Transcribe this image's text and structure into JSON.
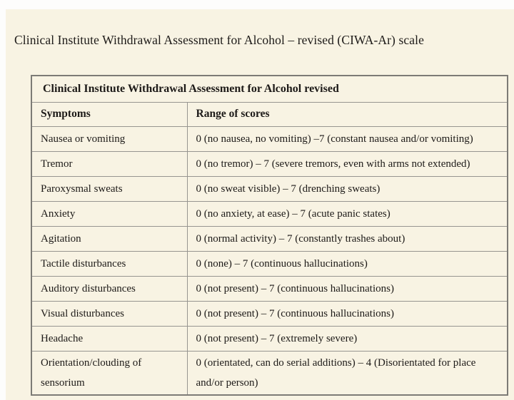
{
  "page": {
    "title": "Clinical Institute Withdrawal Assessment for Alcohol – revised (CIWA-Ar) scale"
  },
  "colors": {
    "page_background": "#f8f3e3",
    "table_border_outer": "#7d7b76",
    "table_border_inner": "#979590",
    "text": "#1d1a18"
  },
  "table": {
    "header": "Clinical Institute Withdrawal Assessment for Alcohol revised",
    "columns": [
      "Symptoms",
      "Range of scores"
    ],
    "rows": [
      {
        "symptom": "Nausea or vomiting",
        "range": "0 (no nausea, no vomiting) –7 (constant nausea and/or vomiting)"
      },
      {
        "symptom": "Tremor",
        "range": "0 (no tremor) – 7 (severe tremors, even with arms not extended)"
      },
      {
        "symptom": "Paroxysmal sweats",
        "range": "0 (no sweat visible) – 7 (drenching sweats)"
      },
      {
        "symptom": "Anxiety",
        "range": "0 (no anxiety, at ease) – 7 (acute panic states)"
      },
      {
        "symptom": "Agitation",
        "range": "0 (normal activity) – 7 (constantly trashes about)"
      },
      {
        "symptom": "Tactile disturbances",
        "range": "0 (none) – 7 (continuous hallucinations)"
      },
      {
        "symptom": "Auditory disturbances",
        "range": "0 (not present) – 7 (continuous hallucinations)"
      },
      {
        "symptom": "Visual disturbances",
        "range": "0 (not present) – 7 (continuous hallucinations)"
      },
      {
        "symptom": "Headache",
        "range": "0 (not present) – 7 (extremely severe)"
      },
      {
        "symptom": "Orientation/clouding of sensorium",
        "range": "0 (orientated, can do serial additions) – 4 (Disorientated for place and/or person)"
      }
    ]
  }
}
